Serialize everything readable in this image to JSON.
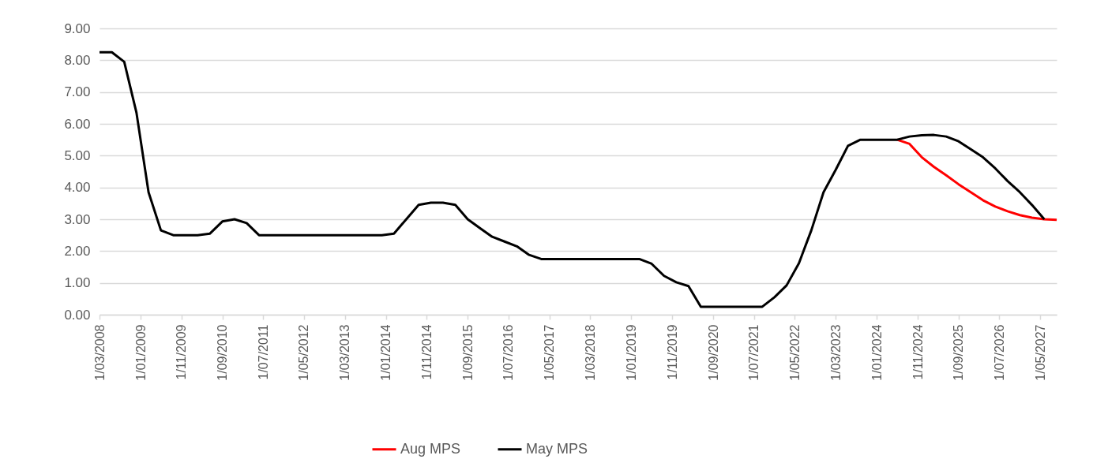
{
  "chart_data": {
    "type": "line",
    "x": [
      "2008-03",
      "2008-06",
      "2008-09",
      "2008-12",
      "2009-03",
      "2009-06",
      "2009-09",
      "2009-12",
      "2010-03",
      "2010-06",
      "2010-09",
      "2010-12",
      "2011-03",
      "2011-06",
      "2011-09",
      "2011-12",
      "2012-03",
      "2012-06",
      "2012-09",
      "2012-12",
      "2013-03",
      "2013-06",
      "2013-09",
      "2013-12",
      "2014-03",
      "2014-06",
      "2014-09",
      "2014-12",
      "2015-03",
      "2015-06",
      "2015-09",
      "2015-12",
      "2016-03",
      "2016-06",
      "2016-09",
      "2016-12",
      "2017-03",
      "2017-06",
      "2017-09",
      "2017-12",
      "2018-03",
      "2018-06",
      "2018-09",
      "2018-12",
      "2019-03",
      "2019-06",
      "2019-09",
      "2019-12",
      "2020-03",
      "2020-06",
      "2020-09",
      "2020-12",
      "2021-03",
      "2021-06",
      "2021-09",
      "2021-12",
      "2022-03",
      "2022-06",
      "2022-09",
      "2022-12",
      "2023-03",
      "2023-06",
      "2023-09",
      "2023-12",
      "2024-03",
      "2024-06",
      "2024-09",
      "2024-12",
      "2025-03",
      "2025-06",
      "2025-09",
      "2025-12",
      "2026-03",
      "2026-06",
      "2026-09",
      "2026-12",
      "2027-03",
      "2027-06",
      "2027-09"
    ],
    "series": [
      {
        "name": "Aug MPS",
        "color": "#ff0000",
        "values": [
          null,
          null,
          null,
          null,
          null,
          null,
          null,
          null,
          null,
          null,
          null,
          null,
          null,
          null,
          null,
          null,
          null,
          null,
          null,
          null,
          null,
          null,
          null,
          null,
          null,
          null,
          null,
          null,
          null,
          null,
          null,
          null,
          null,
          null,
          null,
          null,
          null,
          null,
          null,
          null,
          null,
          null,
          null,
          null,
          null,
          null,
          null,
          null,
          null,
          null,
          null,
          null,
          null,
          null,
          null,
          null,
          null,
          null,
          null,
          null,
          null,
          null,
          null,
          null,
          null,
          5.5,
          5.37,
          4.95,
          4.65,
          4.38,
          4.1,
          3.85,
          3.6,
          3.4,
          3.25,
          3.13,
          3.05,
          3.0,
          2.98
        ]
      },
      {
        "name": "May MPS",
        "color": "#000000",
        "values": [
          8.25,
          8.25,
          7.95,
          6.35,
          3.85,
          2.65,
          2.5,
          2.5,
          2.5,
          2.55,
          2.93,
          3.0,
          2.88,
          2.5,
          2.5,
          2.5,
          2.5,
          2.5,
          2.5,
          2.5,
          2.5,
          2.5,
          2.5,
          2.5,
          2.55,
          3.0,
          3.45,
          3.52,
          3.52,
          3.45,
          3.0,
          2.72,
          2.45,
          2.3,
          2.15,
          1.88,
          1.75,
          1.75,
          1.75,
          1.75,
          1.75,
          1.75,
          1.75,
          1.75,
          1.75,
          1.6,
          1.22,
          1.02,
          0.9,
          0.25,
          0.25,
          0.25,
          0.25,
          0.25,
          0.25,
          0.55,
          0.92,
          1.62,
          2.65,
          3.85,
          4.55,
          5.31,
          5.5,
          5.5,
          5.5,
          5.5,
          5.6,
          5.64,
          5.65,
          5.6,
          5.45,
          5.2,
          4.95,
          4.6,
          4.2,
          3.85,
          3.45,
          3.0,
          null
        ]
      }
    ],
    "xlim": [
      "2008-03",
      "2027-09"
    ],
    "xticks": [
      {
        "value": "2008-03",
        "label": "1/03/2008"
      },
      {
        "value": "2009-01",
        "label": "1/01/2009"
      },
      {
        "value": "2009-11",
        "label": "1/11/2009"
      },
      {
        "value": "2010-09",
        "label": "1/09/2010"
      },
      {
        "value": "2011-07",
        "label": "1/07/2011"
      },
      {
        "value": "2012-05",
        "label": "1/05/2012"
      },
      {
        "value": "2013-03",
        "label": "1/03/2013"
      },
      {
        "value": "2014-01",
        "label": "1/01/2014"
      },
      {
        "value": "2014-11",
        "label": "1/11/2014"
      },
      {
        "value": "2015-09",
        "label": "1/09/2015"
      },
      {
        "value": "2016-07",
        "label": "1/07/2016"
      },
      {
        "value": "2017-05",
        "label": "1/05/2017"
      },
      {
        "value": "2018-03",
        "label": "1/03/2018"
      },
      {
        "value": "2019-01",
        "label": "1/01/2019"
      },
      {
        "value": "2019-11",
        "label": "1/11/2019"
      },
      {
        "value": "2020-09",
        "label": "1/09/2020"
      },
      {
        "value": "2021-07",
        "label": "1/07/2021"
      },
      {
        "value": "2022-05",
        "label": "1/05/2022"
      },
      {
        "value": "2023-03",
        "label": "1/03/2023"
      },
      {
        "value": "2024-01",
        "label": "1/01/2024"
      },
      {
        "value": "2024-11",
        "label": "1/11/2024"
      },
      {
        "value": "2025-09",
        "label": "1/09/2025"
      },
      {
        "value": "2026-07",
        "label": "1/07/2026"
      },
      {
        "value": "2027-05",
        "label": "1/05/2027"
      }
    ],
    "ylim": [
      0,
      9
    ],
    "yticks": [
      {
        "value": 0,
        "label": "0.00"
      },
      {
        "value": 1,
        "label": "1.00"
      },
      {
        "value": 2,
        "label": "2.00"
      },
      {
        "value": 3,
        "label": "3.00"
      },
      {
        "value": 4,
        "label": "4.00"
      },
      {
        "value": 5,
        "label": "5.00"
      },
      {
        "value": 6,
        "label": "6.00"
      },
      {
        "value": 7,
        "label": "7.00"
      },
      {
        "value": 8,
        "label": "8.00"
      },
      {
        "value": 9,
        "label": "9.00"
      }
    ],
    "grid": "y",
    "legend": "bottom",
    "marker": "none",
    "line_style": "solid"
  }
}
